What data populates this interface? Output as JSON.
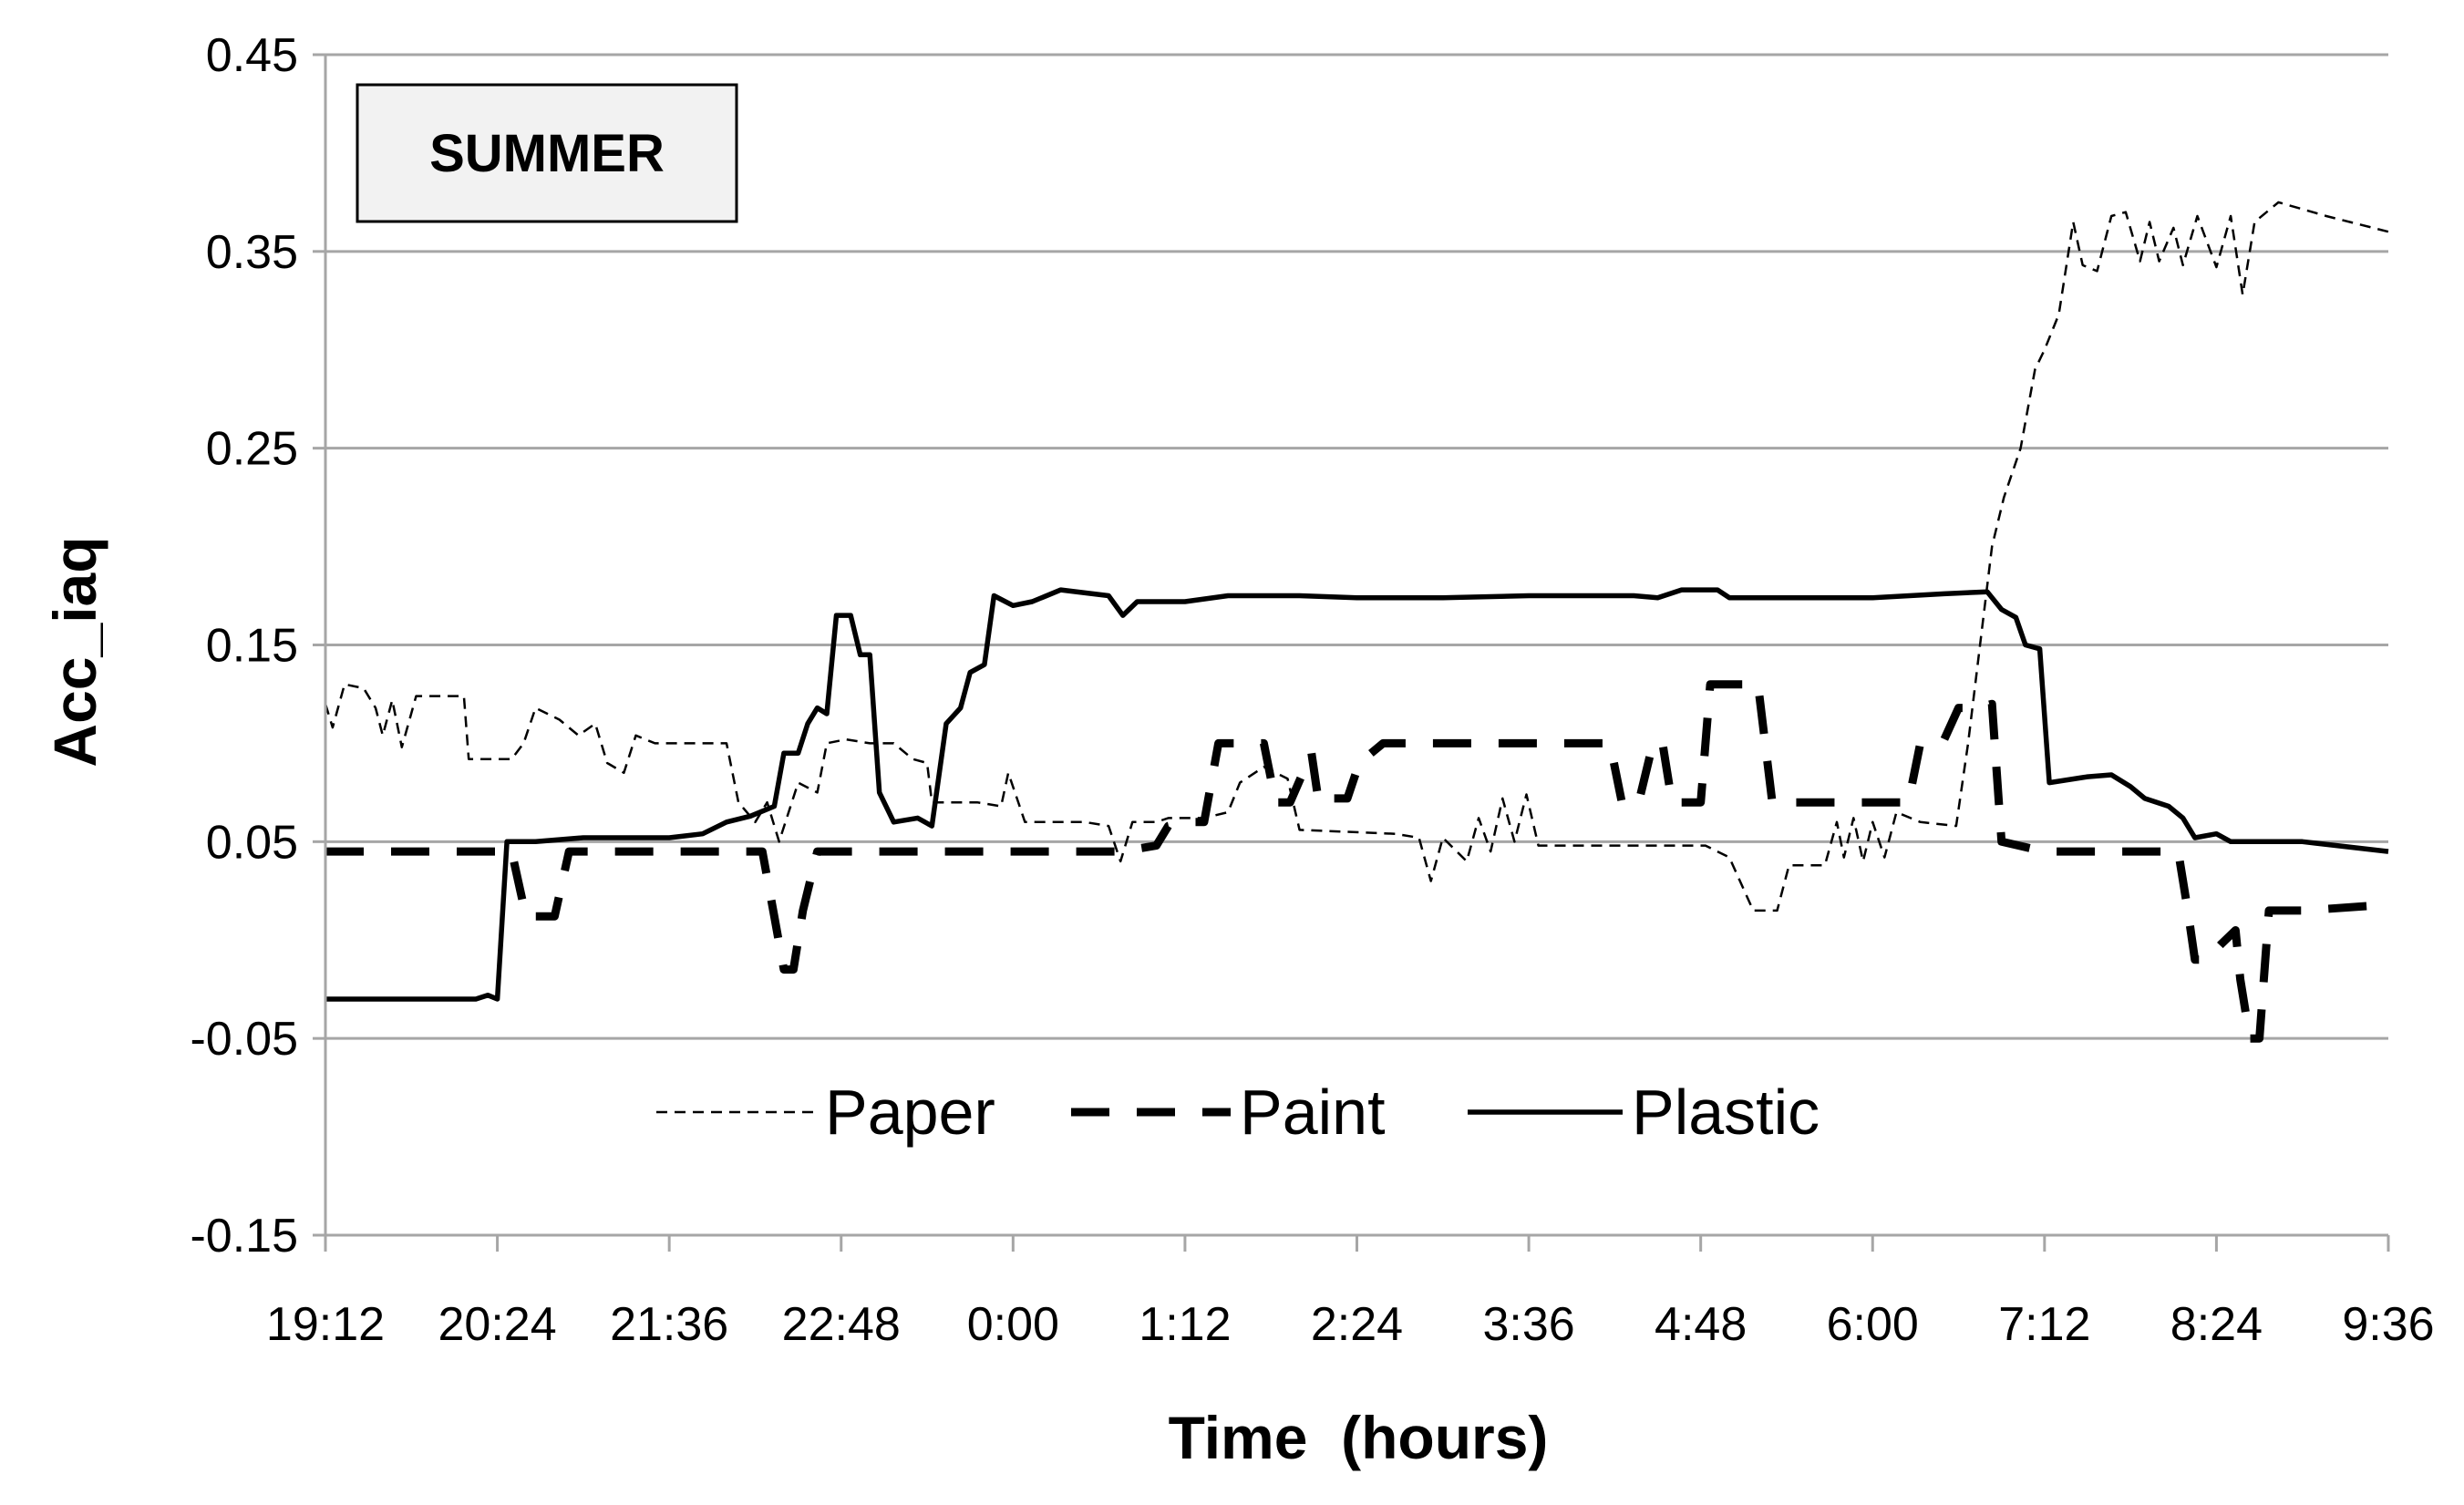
{
  "chart_data": {
    "type": "line",
    "annotation": "SUMMER",
    "xlabel": "Time  (hours)",
    "ylabel": "Acc_iaq",
    "ylim": [
      -0.15,
      0.45
    ],
    "yticks": [
      -0.15,
      -0.05,
      0.05,
      0.15,
      0.25,
      0.35,
      0.45
    ],
    "ytick_labels": [
      "-0.15",
      "-0.05",
      "0.05",
      "0.15",
      "0.25",
      "0.35",
      "0.45"
    ],
    "xlim": [
      "19:12",
      "9:36"
    ],
    "xtick_labels": [
      "19:12",
      "20:24",
      "21:36",
      "22:48",
      "0:00",
      "1:12",
      "2:24",
      "3:36",
      "4:48",
      "6:00",
      "7:12",
      "8:24",
      "9:36"
    ],
    "grid": "horizontal",
    "legend_position": "bottom-center",
    "series": [
      {
        "name": "Paper",
        "style": "thin-dashed",
        "color": "#000000",
        "points": [
          [
            "19:12",
            0.12
          ],
          [
            "19:15",
            0.108
          ],
          [
            "19:20",
            0.13
          ],
          [
            "19:28",
            0.128
          ],
          [
            "19:33",
            0.118
          ],
          [
            "19:36",
            0.104
          ],
          [
            "19:40",
            0.122
          ],
          [
            "19:44",
            0.098
          ],
          [
            "19:50",
            0.124
          ],
          [
            "20:00",
            0.124
          ],
          [
            "20:10",
            0.124
          ],
          [
            "20:12",
            0.092
          ],
          [
            "20:30",
            0.092
          ],
          [
            "20:35",
            0.1
          ],
          [
            "20:40",
            0.118
          ],
          [
            "20:50",
            0.112
          ],
          [
            "20:58",
            0.104
          ],
          [
            "21:05",
            0.11
          ],
          [
            "21:10",
            0.09
          ],
          [
            "21:17",
            0.085
          ],
          [
            "21:22",
            0.104
          ],
          [
            "21:30",
            0.1
          ],
          [
            "21:50",
            0.1
          ],
          [
            "22:00",
            0.1
          ],
          [
            "22:05",
            0.07
          ],
          [
            "22:12",
            0.06
          ],
          [
            "22:17",
            0.07
          ],
          [
            "22:22",
            0.05
          ],
          [
            "22:30",
            0.08
          ],
          [
            "22:38",
            0.075
          ],
          [
            "22:42",
            0.1
          ],
          [
            "22:50",
            0.102
          ],
          [
            "23:00",
            0.1
          ],
          [
            "23:10",
            0.1
          ],
          [
            "23:18",
            0.092
          ],
          [
            "23:24",
            0.09
          ],
          [
            "23:26",
            0.07
          ],
          [
            "23:45",
            0.07
          ],
          [
            "23:55",
            0.068
          ],
          [
            "23:58",
            0.085
          ],
          [
            "0:05",
            0.06
          ],
          [
            "0:30",
            0.06
          ],
          [
            "0:40",
            0.058
          ],
          [
            "0:45",
            0.04
          ],
          [
            "0:50",
            0.06
          ],
          [
            "1:00",
            0.06
          ],
          [
            "1:05",
            0.062
          ],
          [
            "1:20",
            0.062
          ],
          [
            "1:30",
            0.065
          ],
          [
            "1:35",
            0.08
          ],
          [
            "1:45",
            0.088
          ],
          [
            "1:55",
            0.082
          ],
          [
            "2:00",
            0.056
          ],
          [
            "2:20",
            0.055
          ],
          [
            "2:40",
            0.054
          ],
          [
            "2:50",
            0.052
          ],
          [
            "2:55",
            0.03
          ],
          [
            "3:00",
            0.052
          ],
          [
            "3:10",
            0.04
          ],
          [
            "3:15",
            0.062
          ],
          [
            "3:20",
            0.045
          ],
          [
            "3:25",
            0.072
          ],
          [
            "3:30",
            0.05
          ],
          [
            "3:35",
            0.074
          ],
          [
            "3:40",
            0.048
          ],
          [
            "4:00",
            0.048
          ],
          [
            "4:30",
            0.048
          ],
          [
            "4:50",
            0.048
          ],
          [
            "5:00",
            0.042
          ],
          [
            "5:10",
            0.015
          ],
          [
            "5:20",
            0.015
          ],
          [
            "5:25",
            0.038
          ],
          [
            "5:40",
            0.038
          ],
          [
            "5:45",
            0.06
          ],
          [
            "5:48",
            0.042
          ],
          [
            "5:52",
            0.062
          ],
          [
            "5:56",
            0.04
          ],
          [
            "6:00",
            0.06
          ],
          [
            "6:05",
            0.042
          ],
          [
            "6:10",
            0.065
          ],
          [
            "6:20",
            0.06
          ],
          [
            "6:35",
            0.058
          ],
          [
            "6:40",
            0.1
          ],
          [
            "6:45",
            0.15
          ],
          [
            "6:50",
            0.2
          ],
          [
            "6:55",
            0.225
          ],
          [
            "7:02",
            0.25
          ],
          [
            "7:08",
            0.29
          ],
          [
            "7:12",
            0.3
          ],
          [
            "7:18",
            0.318
          ],
          [
            "7:24",
            0.365
          ],
          [
            "7:28",
            0.343
          ],
          [
            "7:34",
            0.34
          ],
          [
            "7:40",
            0.368
          ],
          [
            "7:46",
            0.37
          ],
          [
            "7:52",
            0.345
          ],
          [
            "7:56",
            0.365
          ],
          [
            "8:00",
            0.345
          ],
          [
            "8:06",
            0.362
          ],
          [
            "8:10",
            0.343
          ],
          [
            "8:16",
            0.368
          ],
          [
            "8:24",
            0.342
          ],
          [
            "8:30",
            0.368
          ],
          [
            "8:35",
            0.328
          ],
          [
            "8:40",
            0.365
          ],
          [
            "8:50",
            0.375
          ],
          [
            "9:10",
            0.368
          ],
          [
            "9:36",
            0.36
          ]
        ]
      },
      {
        "name": "Paint",
        "style": "thick-dashed",
        "color": "#000000",
        "points": [
          [
            "19:12",
            0.045
          ],
          [
            "20:24",
            0.045
          ],
          [
            "20:30",
            0.045
          ],
          [
            "20:36",
            0.012
          ],
          [
            "20:48",
            0.012
          ],
          [
            "20:54",
            0.045
          ],
          [
            "22:15",
            0.045
          ],
          [
            "22:20",
            0.012
          ],
          [
            "22:24",
            -0.015
          ],
          [
            "22:28",
            -0.015
          ],
          [
            "22:32",
            0.015
          ],
          [
            "22:38",
            0.045
          ],
          [
            "23:30",
            0.045
          ],
          [
            "0:30",
            0.045
          ],
          [
            "0:45",
            0.045
          ],
          [
            "1:00",
            0.048
          ],
          [
            "1:05",
            0.058
          ],
          [
            "1:12",
            0.06
          ],
          [
            "1:20",
            0.06
          ],
          [
            "1:26",
            0.1
          ],
          [
            "1:45",
            0.1
          ],
          [
            "1:50",
            0.07
          ],
          [
            "1:56",
            0.07
          ],
          [
            "2:05",
            0.095
          ],
          [
            "2:08",
            0.07
          ],
          [
            "2:14",
            0.072
          ],
          [
            "2:20",
            0.072
          ],
          [
            "2:25",
            0.09
          ],
          [
            "2:35",
            0.1
          ],
          [
            "3:00",
            0.1
          ],
          [
            "3:30",
            0.1
          ],
          [
            "4:00",
            0.1
          ],
          [
            "4:10",
            0.1
          ],
          [
            "4:15",
            0.07
          ],
          [
            "4:22",
            0.07
          ],
          [
            "4:28",
            0.1
          ],
          [
            "4:32",
            0.1
          ],
          [
            "4:36",
            0.07
          ],
          [
            "4:48",
            0.07
          ],
          [
            "4:52",
            0.13
          ],
          [
            "5:05",
            0.13
          ],
          [
            "5:12",
            0.13
          ],
          [
            "5:18",
            0.07
          ],
          [
            "5:30",
            0.07
          ],
          [
            "6:00",
            0.07
          ],
          [
            "6:15",
            0.07
          ],
          [
            "6:20",
            0.1
          ],
          [
            "6:30",
            0.102
          ],
          [
            "6:36",
            0.118
          ],
          [
            "6:44",
            0.118
          ],
          [
            "6:50",
            0.12
          ],
          [
            "6:54",
            0.05
          ],
          [
            "7:12",
            0.045
          ],
          [
            "7:40",
            0.045
          ],
          [
            "8:00",
            0.045
          ],
          [
            "8:08",
            0.045
          ],
          [
            "8:12",
            0.015
          ],
          [
            "8:15",
            -0.01
          ],
          [
            "8:20",
            -0.01
          ],
          [
            "8:26",
            -0.002
          ],
          [
            "8:32",
            0.005
          ],
          [
            "8:34",
            -0.02
          ],
          [
            "8:38",
            -0.05
          ],
          [
            "8:42",
            -0.05
          ],
          [
            "8:46",
            0.015
          ],
          [
            "9:00",
            0.015
          ],
          [
            "9:36",
            0.018
          ]
        ]
      },
      {
        "name": "Plastic",
        "style": "solid",
        "color": "#000000",
        "points": [
          [
            "19:12",
            -0.03
          ],
          [
            "20:00",
            -0.03
          ],
          [
            "20:15",
            -0.03
          ],
          [
            "20:20",
            -0.028
          ],
          [
            "20:24",
            -0.03
          ],
          [
            "20:28",
            0.05
          ],
          [
            "20:40",
            0.05
          ],
          [
            "21:00",
            0.052
          ],
          [
            "21:36",
            0.052
          ],
          [
            "21:50",
            0.054
          ],
          [
            "22:00",
            0.06
          ],
          [
            "22:10",
            0.063
          ],
          [
            "22:20",
            0.068
          ],
          [
            "22:24",
            0.095
          ],
          [
            "22:30",
            0.095
          ],
          [
            "22:34",
            0.11
          ],
          [
            "22:38",
            0.118
          ],
          [
            "22:42",
            0.115
          ],
          [
            "22:46",
            0.165
          ],
          [
            "22:52",
            0.165
          ],
          [
            "22:56",
            0.145
          ],
          [
            "23:00",
            0.145
          ],
          [
            "23:04",
            0.075
          ],
          [
            "23:10",
            0.06
          ],
          [
            "23:20",
            0.062
          ],
          [
            "23:26",
            0.058
          ],
          [
            "23:32",
            0.11
          ],
          [
            "23:38",
            0.118
          ],
          [
            "23:42",
            0.136
          ],
          [
            "23:48",
            0.14
          ],
          [
            "23:52",
            0.175
          ],
          [
            "0:00",
            0.17
          ],
          [
            "0:08",
            0.172
          ],
          [
            "0:20",
            0.178
          ],
          [
            "0:40",
            0.175
          ],
          [
            "0:46",
            0.165
          ],
          [
            "0:52",
            0.172
          ],
          [
            "1:12",
            0.172
          ],
          [
            "1:30",
            0.175
          ],
          [
            "2:00",
            0.175
          ],
          [
            "2:24",
            0.174
          ],
          [
            "3:00",
            0.174
          ],
          [
            "3:36",
            0.175
          ],
          [
            "4:00",
            0.175
          ],
          [
            "4:20",
            0.175
          ],
          [
            "4:30",
            0.174
          ],
          [
            "4:40",
            0.178
          ],
          [
            "4:55",
            0.178
          ],
          [
            "5:00",
            0.174
          ],
          [
            "5:30",
            0.174
          ],
          [
            "6:00",
            0.174
          ],
          [
            "6:30",
            0.176
          ],
          [
            "6:48",
            0.177
          ],
          [
            "6:54",
            0.168
          ],
          [
            "7:00",
            0.164
          ],
          [
            "7:04",
            0.15
          ],
          [
            "7:10",
            0.148
          ],
          [
            "7:14",
            0.08
          ],
          [
            "7:30",
            0.083
          ],
          [
            "7:40",
            0.084
          ],
          [
            "7:48",
            0.078
          ],
          [
            "7:54",
            0.072
          ],
          [
            "8:04",
            0.068
          ],
          [
            "8:10",
            0.062
          ],
          [
            "8:15",
            0.052
          ],
          [
            "8:24",
            0.054
          ],
          [
            "8:30",
            0.05
          ],
          [
            "9:00",
            0.05
          ],
          [
            "9:36",
            0.045
          ]
        ]
      }
    ]
  }
}
